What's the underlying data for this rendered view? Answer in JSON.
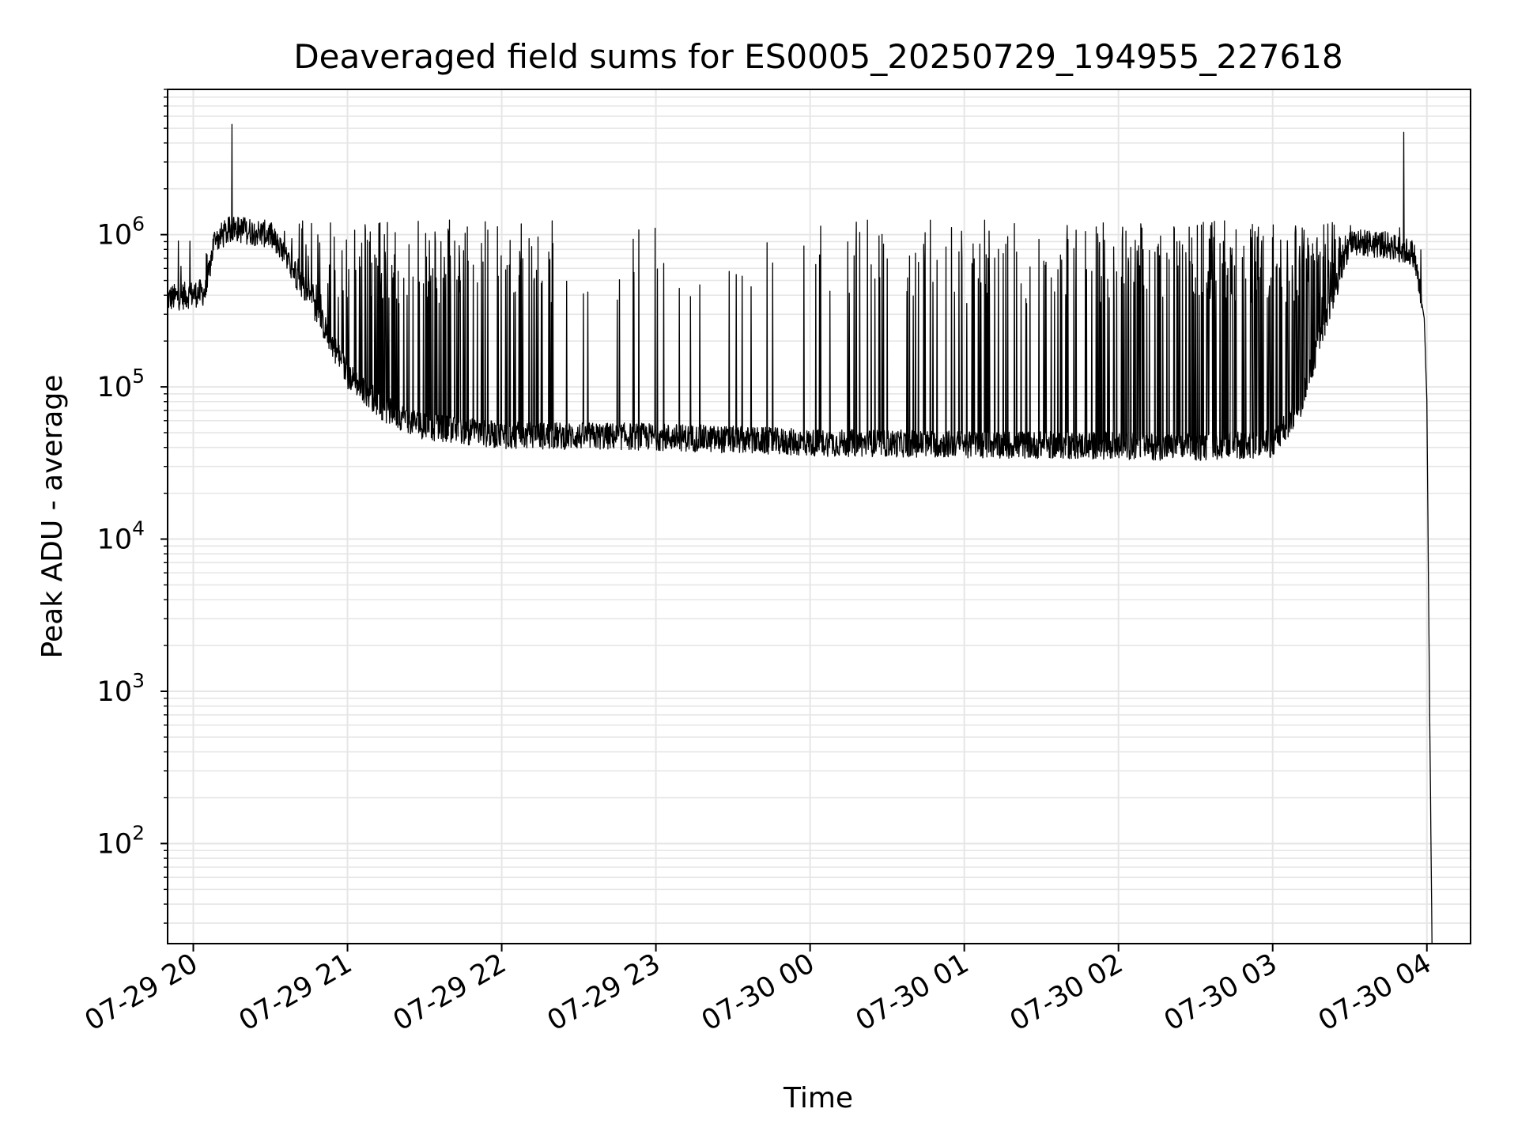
{
  "chart_data": {
    "type": "line",
    "title": "Deaveraged field sums for ES0005_20250729_194955_227618",
    "xlabel": "Time",
    "ylabel": "Peak ADU - average",
    "yscale": "log",
    "xlim": [
      "2025-07-29 19:50",
      "2025-07-30 04:17"
    ],
    "ylim": [
      22,
      9000000
    ],
    "grid": true,
    "grid_minor": true,
    "x_tick_labels": [
      "07-29 20",
      "07-29 21",
      "07-29 22",
      "07-29 23",
      "07-30 00",
      "07-30 01",
      "07-30 02",
      "07-30 03",
      "07-30 04"
    ],
    "x_tick_values": [
      "2025-07-29 20:00",
      "2025-07-29 21:00",
      "2025-07-29 22:00",
      "2025-07-29 23:00",
      "2025-07-30 00:00",
      "2025-07-30 01:00",
      "2025-07-30 02:00",
      "2025-07-30 03:00",
      "2025-07-30 04:00"
    ],
    "y_tick_values": [
      100,
      1000,
      10000,
      100000,
      1000000
    ],
    "y_tick_labels": [
      {
        "base": "10",
        "exp": "2"
      },
      {
        "base": "10",
        "exp": "3"
      },
      {
        "base": "10",
        "exp": "4"
      },
      {
        "base": "10",
        "exp": "5"
      },
      {
        "base": "10",
        "exp": "6"
      }
    ],
    "line_color": "#000000",
    "series": [
      {
        "baseline": [
          [
            "2025-07-29 19:50",
            380000
          ],
          [
            "2025-07-29 20:05",
            420000
          ],
          [
            "2025-07-29 20:08",
            900000
          ],
          [
            "2025-07-29 20:15",
            1100000
          ],
          [
            "2025-07-29 20:30",
            1000000
          ],
          [
            "2025-07-29 20:45",
            400000
          ],
          [
            "2025-07-29 21:00",
            120000
          ],
          [
            "2025-07-29 21:15",
            70000
          ],
          [
            "2025-07-29 21:30",
            55000
          ],
          [
            "2025-07-29 22:00",
            48000
          ],
          [
            "2025-07-29 23:00",
            47000
          ],
          [
            "2025-07-30 00:00",
            43000
          ],
          [
            "2025-07-30 01:00",
            42000
          ],
          [
            "2025-07-30 02:00",
            41000
          ],
          [
            "2025-07-30 02:30",
            40000
          ],
          [
            "2025-07-30 03:00",
            42000
          ],
          [
            "2025-07-30 03:10",
            70000
          ],
          [
            "2025-07-30 03:20",
            250000
          ],
          [
            "2025-07-30 03:30",
            900000
          ],
          [
            "2025-07-30 03:45",
            850000
          ],
          [
            "2025-07-30 03:55",
            750000
          ],
          [
            "2025-07-30 03:59",
            280000
          ],
          [
            "2025-07-30 04:00",
            80000
          ],
          [
            "2025-07-30 04:01",
            1000
          ],
          [
            "2025-07-30 04:02",
            22
          ]
        ],
        "spike_density": [
          [
            "2025-07-29 19:50",
            0.02
          ],
          [
            "2025-07-29 20:10",
            0.3
          ],
          [
            "2025-07-29 21:30",
            0.55
          ],
          [
            "2025-07-29 22:00",
            0.35
          ],
          [
            "2025-07-29 22:30",
            0.12
          ],
          [
            "2025-07-29 23:30",
            0.08
          ],
          [
            "2025-07-30 00:00",
            0.1
          ],
          [
            "2025-07-30 01:00",
            0.22
          ],
          [
            "2025-07-30 02:00",
            0.4
          ],
          [
            "2025-07-30 02:30",
            0.6
          ],
          [
            "2025-07-30 03:00",
            0.75
          ],
          [
            "2025-07-30 03:40",
            0.4
          ],
          [
            "2025-07-30 04:00",
            0.0
          ]
        ],
        "spike_top": 1250000,
        "peaks": [
          [
            "2025-07-29 20:15",
            5300000
          ],
          [
            "2025-07-30 03:51",
            4700000
          ]
        ]
      }
    ]
  }
}
